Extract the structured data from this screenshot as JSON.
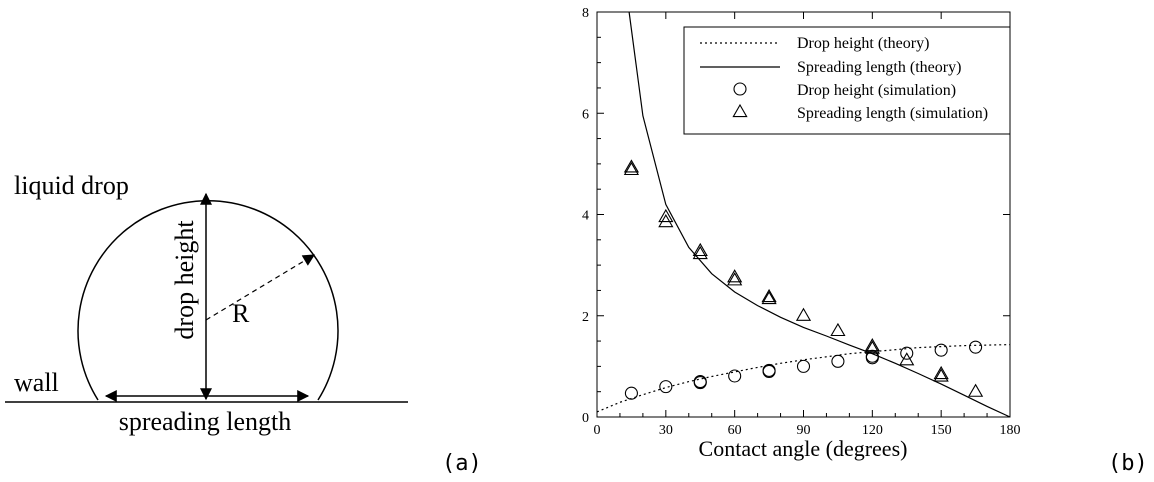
{
  "diagram": {
    "labels": {
      "liquid_drop": "liquid drop",
      "drop_height": "drop height",
      "radius": "R",
      "wall": "wall",
      "spreading_length": "spreading length"
    },
    "panel_tag": "(a)"
  },
  "chart_panel_tag": "(b)",
  "chart_data": {
    "type": "scatter",
    "xlabel": "Contact angle (degrees)",
    "ylabel": "",
    "xlim": [
      0,
      180
    ],
    "ylim": [
      0,
      8
    ],
    "x_ticks": [
      0,
      30,
      60,
      90,
      120,
      150,
      180
    ],
    "y_ticks": [
      0,
      2,
      4,
      6,
      8
    ],
    "grid": false,
    "legend_position": "top-right",
    "series": [
      {
        "name": "Drop height (theory)",
        "kind": "line",
        "style": "dotted",
        "x": [
          0,
          10,
          20,
          30,
          40,
          50,
          60,
          70,
          80,
          90,
          100,
          110,
          120,
          130,
          140,
          150,
          160,
          170,
          180
        ],
        "y": [
          0.1,
          0.29,
          0.44,
          0.58,
          0.7,
          0.8,
          0.89,
          0.98,
          1.06,
          1.13,
          1.19,
          1.25,
          1.29,
          1.33,
          1.37,
          1.39,
          1.41,
          1.42,
          1.43
        ]
      },
      {
        "name": "Spreading length (theory)",
        "kind": "line",
        "style": "solid",
        "x": [
          14,
          20,
          30,
          40,
          50,
          60,
          70,
          80,
          90,
          100,
          110,
          120,
          130,
          140,
          150,
          160,
          170,
          180
        ],
        "y": [
          8.0,
          5.95,
          4.2,
          3.35,
          2.83,
          2.47,
          2.2,
          1.97,
          1.77,
          1.6,
          1.42,
          1.25,
          1.06,
          0.86,
          0.65,
          0.43,
          0.21,
          0.0
        ]
      },
      {
        "name": "Drop height (simulation)",
        "kind": "points",
        "marker": "circle",
        "x": [
          15,
          30,
          45,
          45,
          60,
          75,
          75,
          90,
          105,
          120,
          120,
          135,
          150,
          165
        ],
        "y": [
          0.47,
          0.6,
          0.7,
          0.68,
          0.81,
          0.9,
          0.92,
          1.0,
          1.1,
          1.17,
          1.2,
          1.26,
          1.32,
          1.38
        ]
      },
      {
        "name": "Spreading length (simulation)",
        "kind": "points",
        "marker": "triangle",
        "x": [
          15,
          15,
          30,
          30,
          45,
          45,
          60,
          60,
          75,
          75,
          90,
          105,
          120,
          120,
          135,
          150,
          150,
          165
        ],
        "y": [
          4.88,
          4.93,
          3.85,
          3.95,
          3.22,
          3.28,
          2.7,
          2.76,
          2.33,
          2.37,
          2.0,
          1.7,
          1.35,
          1.4,
          1.12,
          0.8,
          0.85,
          0.5
        ]
      }
    ]
  }
}
